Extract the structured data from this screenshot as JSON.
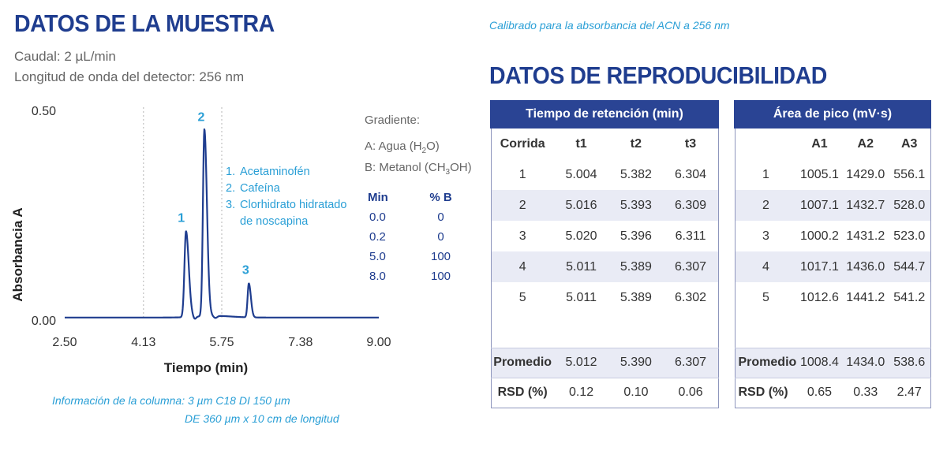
{
  "header": {
    "sample_title": "DATOS DE LA MUESTRA",
    "flow_rate": "Caudal: 2 µL/min",
    "wavelength": "Longitud de onda del detector: 256 nm",
    "calibration_note": "Calibrado para la absorbancia del ACN a 256 nm",
    "repro_title": "DATOS DE REPRODUCIBILIDAD"
  },
  "chart_data": {
    "type": "line",
    "ylabel": "Absorbancia A",
    "xlabel": "Tiempo (min)",
    "xlim": [
      2.5,
      9.0
    ],
    "ylim": [
      0.0,
      0.5
    ],
    "x_ticks": [
      "2.50",
      "4.13",
      "5.75",
      "7.38",
      "9.00"
    ],
    "x_tick_values": [
      2.5,
      4.13,
      5.75,
      7.38,
      9.0
    ],
    "y_ticks": [
      "0.00",
      "0.50"
    ],
    "y_tick_values": [
      0.0,
      0.5
    ],
    "vertical_dashed_lines": [
      4.13,
      5.75
    ],
    "baseline": 0.006,
    "series": [
      {
        "peaks": [
          {
            "label": "1",
            "time": 5.01,
            "height": 0.211
          },
          {
            "label": "2",
            "time": 5.39,
            "height": 0.452
          },
          {
            "label": "3",
            "time": 6.31,
            "height": 0.087
          }
        ]
      }
    ]
  },
  "legend": {
    "items": [
      {
        "num": "1.",
        "text": "Acetaminofén"
      },
      {
        "num": "2.",
        "text": "Cafeína"
      },
      {
        "num": "3.",
        "text": "Clorhidrato hidratado",
        "cont": "de noscapina"
      }
    ]
  },
  "gradient": {
    "title": "Gradiente:",
    "a_prefix": "A: Agua (H",
    "a_sub": "2",
    "a_suffix": "O)",
    "b_prefix": "B: Metanol (CH",
    "b_sub": "3",
    "b_suffix": "OH)",
    "col_min": "Min",
    "col_b": "% B",
    "rows": [
      {
        "min": "0.0",
        "b": "0"
      },
      {
        "min": "0.2",
        "b": "0"
      },
      {
        "min": "5.0",
        "b": "100"
      },
      {
        "min": "8.0",
        "b": "100"
      }
    ]
  },
  "column_info": {
    "line1": "Información de la columna: 3 µm C18 DI 150 µm",
    "line2": "DE 360 µm x 10 cm de longitud"
  },
  "retention_table": {
    "title": "Tiempo de retención (min)",
    "cols": [
      "Corrida",
      "t1",
      "t2",
      "t3"
    ],
    "rows": [
      [
        "1",
        "5.004",
        "5.382",
        "6.304"
      ],
      [
        "2",
        "5.016",
        "5.393",
        "6.309"
      ],
      [
        "3",
        "5.020",
        "5.396",
        "6.311"
      ],
      [
        "4",
        "5.011",
        "5.389",
        "6.307"
      ],
      [
        "5",
        "5.011",
        "5.389",
        "6.302"
      ]
    ],
    "avg": [
      "Promedio",
      "5.012",
      "5.390",
      "6.307"
    ],
    "rsd": [
      "RSD (%)",
      "0.12",
      "0.10",
      "0.06"
    ]
  },
  "area_table": {
    "title": "Área de pico (mV·s)",
    "cols": [
      "",
      "A1",
      "A2",
      "A3"
    ],
    "rows": [
      [
        "1",
        "1005.1",
        "1429.0",
        "556.1"
      ],
      [
        "2",
        "1007.1",
        "1432.7",
        "528.0"
      ],
      [
        "3",
        "1000.2",
        "1431.2",
        "523.0"
      ],
      [
        "4",
        "1017.1",
        "1436.0",
        "544.7"
      ],
      [
        "5",
        "1012.6",
        "1441.2",
        "541.2"
      ]
    ],
    "avg": [
      "Promedio",
      "1008.4",
      "1434.0",
      "538.6"
    ],
    "rsd": [
      "RSD (%)",
      "0.65",
      "0.33",
      "2.47"
    ]
  },
  "colors": {
    "navy": "#1f3d8f",
    "accent": "#2a9fd6",
    "table_header": "#2a4494",
    "row_shade": "#e9ebf5",
    "trace": "#1f3d8f"
  }
}
